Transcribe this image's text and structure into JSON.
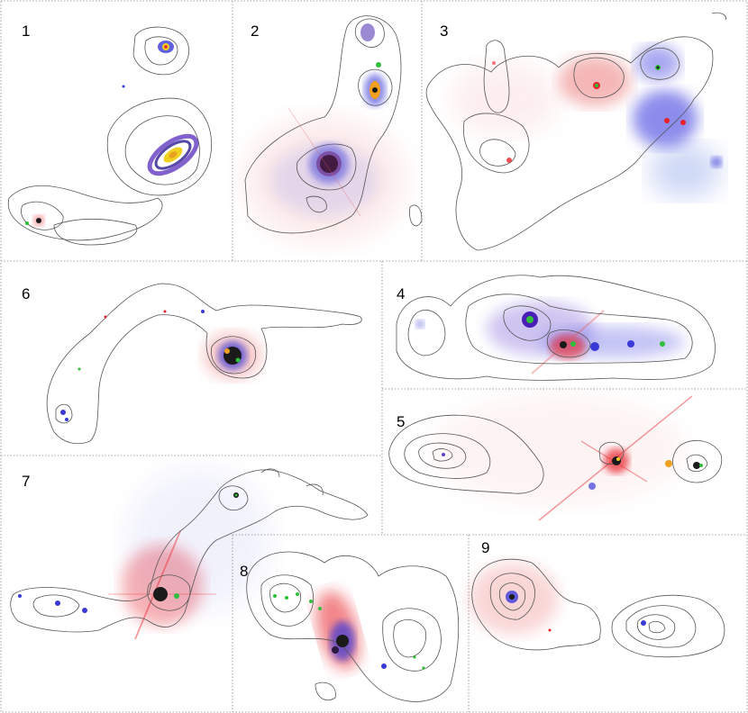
{
  "figure": {
    "panels": [
      {
        "id": "1",
        "label": "1"
      },
      {
        "id": "2",
        "label": "2"
      },
      {
        "id": "3",
        "label": "3"
      },
      {
        "id": "4",
        "label": "4"
      },
      {
        "id": "5",
        "label": "5"
      },
      {
        "id": "6",
        "label": "6"
      },
      {
        "id": "7",
        "label": "7"
      },
      {
        "id": "8",
        "label": "8"
      },
      {
        "id": "9",
        "label": "9"
      }
    ],
    "colors": {
      "divider": "#888888",
      "contour": "#444444",
      "red": "#e8202a",
      "blue": "#3a3ad8",
      "green": "#2fbf3a",
      "yellow": "#f0d020"
    }
  }
}
